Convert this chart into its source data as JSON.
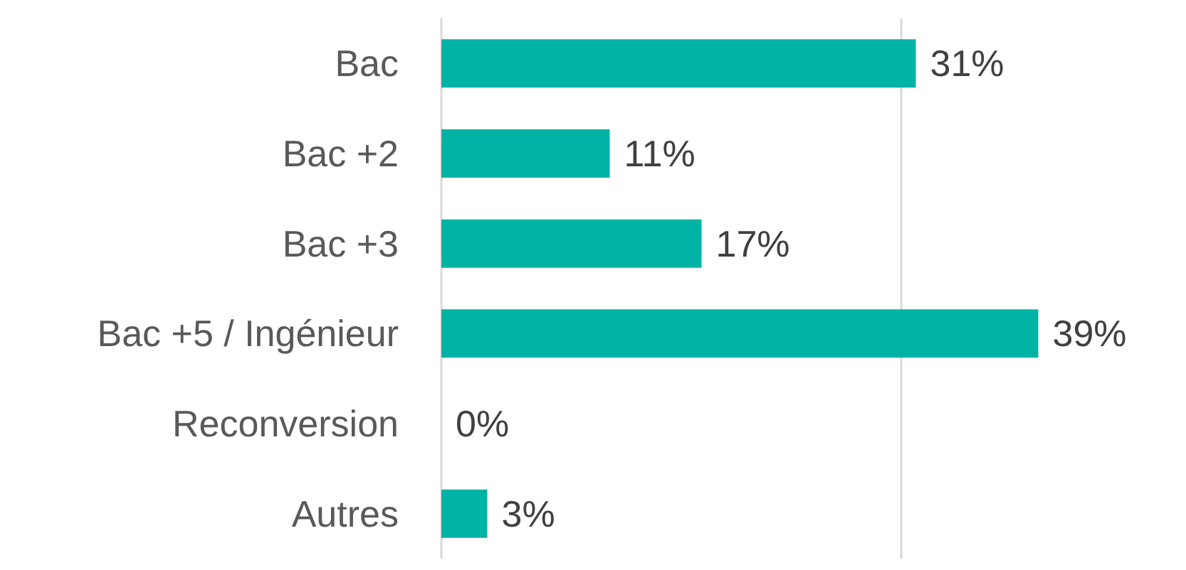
{
  "chart_data": {
    "type": "bar",
    "orientation": "horizontal",
    "categories": [
      "Bac",
      "Bac +2",
      "Bac +3",
      "Bac +5 / Ingénieur",
      "Reconversion",
      "Autres"
    ],
    "values": [
      31,
      11,
      17,
      39,
      0,
      3
    ],
    "value_labels": [
      "31%",
      "11%",
      "17%",
      "39%",
      "0%",
      "3%"
    ],
    "color": "#00b3a4",
    "tick_labels": "y",
    "ref_lines": [
      {
        "axis": "x",
        "value": 30,
        "color": "#d9d9d9"
      }
    ]
  }
}
